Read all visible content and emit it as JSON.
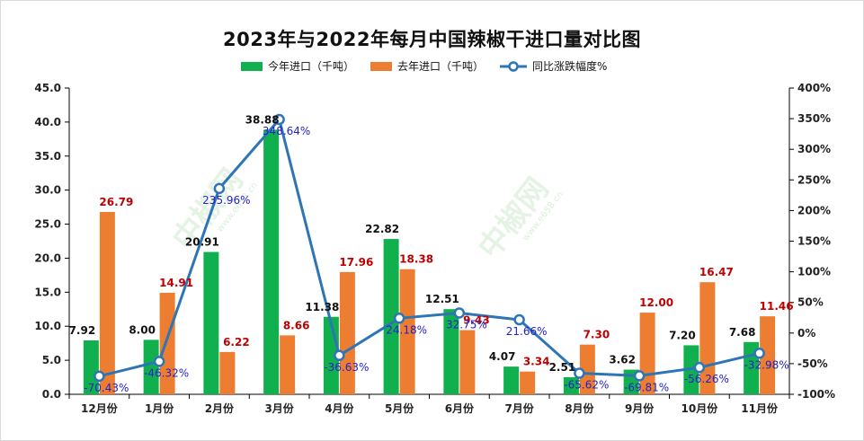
{
  "chart_data": {
    "type": "bar",
    "title": "2023年与2022年每月中国辣椒干进口量对比图",
    "categories": [
      "12月份",
      "1月份",
      "2月份",
      "3月份",
      "4月份",
      "5月份",
      "6月份",
      "7月份",
      "8月份",
      "9月份",
      "10月份",
      "11月份"
    ],
    "series": [
      {
        "name": "今年进口（千吨）",
        "kind": "bar",
        "axis": "left",
        "color": "#11b04f",
        "values": [
          7.92,
          8.0,
          20.91,
          38.88,
          11.38,
          22.82,
          12.51,
          4.07,
          2.51,
          3.62,
          7.2,
          7.68
        ],
        "labels": [
          "7.92",
          "8.00",
          "20.91",
          "38.88",
          "11.38",
          "22.82",
          "12.51",
          "4.07",
          "2.51",
          "3.62",
          "7.20",
          "7.68"
        ]
      },
      {
        "name": "去年进口（千吨）",
        "kind": "bar",
        "axis": "left",
        "color": "#ed7d31",
        "values": [
          26.79,
          14.91,
          6.22,
          8.66,
          17.96,
          18.38,
          9.43,
          3.34,
          7.3,
          12.0,
          16.47,
          11.46
        ],
        "labels": [
          "26.79",
          "14.91",
          "6.22",
          "8.66",
          "17.96",
          "18.38",
          "9.43",
          "3.34",
          "7.30",
          "12.00",
          "16.47",
          "11.46"
        ]
      },
      {
        "name": "同比涨跌幅度%",
        "kind": "line",
        "axis": "right",
        "color": "#2e75b6",
        "values": [
          -70.43,
          -46.32,
          235.96,
          348.64,
          -36.63,
          24.18,
          32.75,
          21.66,
          -65.62,
          -69.81,
          -56.26,
          -32.98
        ],
        "labels": [
          "-70.43%",
          "-46.32%",
          "235.96%",
          "348.64%",
          "-36.63%",
          "24.18%",
          "32.75%",
          "21.66%",
          "-65.62%",
          "-69.81%",
          "-56.26%",
          "-32.98%"
        ]
      }
    ],
    "y_left": {
      "min": 0,
      "max": 45,
      "step": 5,
      "ticks": [
        "0.0",
        "5.0",
        "10.0",
        "15.0",
        "20.0",
        "25.0",
        "30.0",
        "35.0",
        "40.0",
        "45.0"
      ]
    },
    "y_right": {
      "min": -100,
      "max": 400,
      "step": 50,
      "ticks": [
        "-100%",
        "-50%",
        "0%",
        "50%",
        "100%",
        "150%",
        "200%",
        "250%",
        "300%",
        "350%",
        "400%"
      ]
    },
    "grid": false,
    "legend_position": "top-center"
  },
  "watermark": {
    "text": "中椒网",
    "url": "www.e658.cn"
  }
}
